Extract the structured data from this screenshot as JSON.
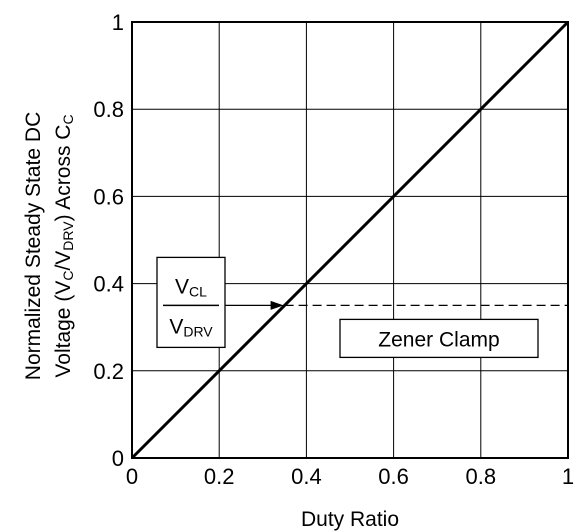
{
  "chart_data": {
    "type": "line",
    "xlabel": "Duty Ratio",
    "ylabel_line1": "Normalized Steady State DC",
    "ylabel_line2": {
      "pre": "Voltage (V",
      "sub1": "C",
      "mid": "/V",
      "sub2": "DRV",
      "post": ") Across C",
      "sub3": "C"
    },
    "xlim": [
      0,
      1
    ],
    "ylim": [
      0,
      1
    ],
    "grid": true,
    "x_ticks": [
      "0",
      "0.2",
      "0.4",
      "0.6",
      "0.8",
      "1"
    ],
    "y_ticks": [
      "0",
      "0.2",
      "0.4",
      "0.6",
      "0.8",
      "1"
    ],
    "x_tick_values": [
      0,
      0.2,
      0.4,
      0.6,
      0.8,
      1
    ],
    "y_tick_values": [
      0,
      0.2,
      0.4,
      0.6,
      0.8,
      1
    ],
    "series": [
      {
        "style": "solid",
        "x": [
          0,
          1
        ],
        "y": [
          0,
          1
        ]
      }
    ],
    "clamp_line": {
      "style": "dashed",
      "x": [
        0.35,
        1
      ],
      "y": [
        0.35,
        0.35
      ]
    },
    "annotations": {
      "ratio_label": {
        "numerator": "V",
        "numerator_sub": "CL",
        "denominator": "V",
        "denominator_sub": "DRV"
      },
      "clamp_label": "Zener Clamp"
    }
  }
}
